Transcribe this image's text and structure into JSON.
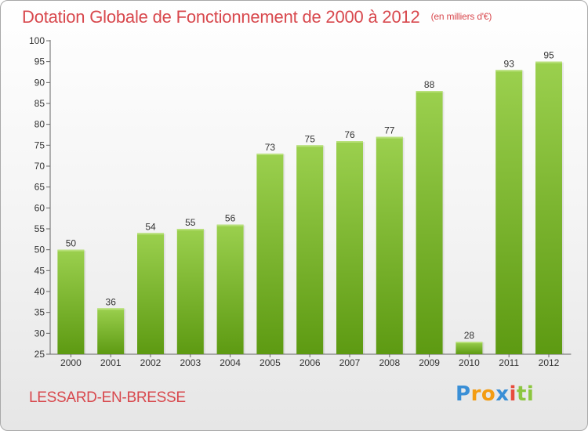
{
  "title": "Dotation Globale de Fonctionnement de 2000 à 2012",
  "unit_note": "(en milliers d'€)",
  "commune": "LESSARD-EN-BRESSE",
  "logo": {
    "parts": [
      "P",
      "ro",
      "x",
      "i",
      "ti"
    ],
    "colors": [
      "#3a8fd6",
      "#f39c12",
      "#3a8fd6",
      "#e74c3c",
      "#8cc63f"
    ]
  },
  "colors": {
    "title": "#d8484d",
    "bar_top": "#9bd04e",
    "bar_bottom": "#5d9a12"
  },
  "chart_data": {
    "type": "bar",
    "title": "Dotation Globale de Fonctionnement de 2000 à 2012",
    "subtitle": "(en milliers d'€)",
    "categories": [
      "2000",
      "2001",
      "2002",
      "2003",
      "2004",
      "2005",
      "2006",
      "2007",
      "2008",
      "2009",
      "2010",
      "2011",
      "2012"
    ],
    "values": [
      50,
      36,
      54,
      55,
      56,
      73,
      75,
      76,
      77,
      88,
      28,
      93,
      95
    ],
    "ylim": [
      25,
      100
    ],
    "yticks": [
      25,
      30,
      35,
      40,
      45,
      50,
      55,
      60,
      65,
      70,
      75,
      80,
      85,
      90,
      95,
      100
    ],
    "grid": false,
    "data_labels": true
  }
}
